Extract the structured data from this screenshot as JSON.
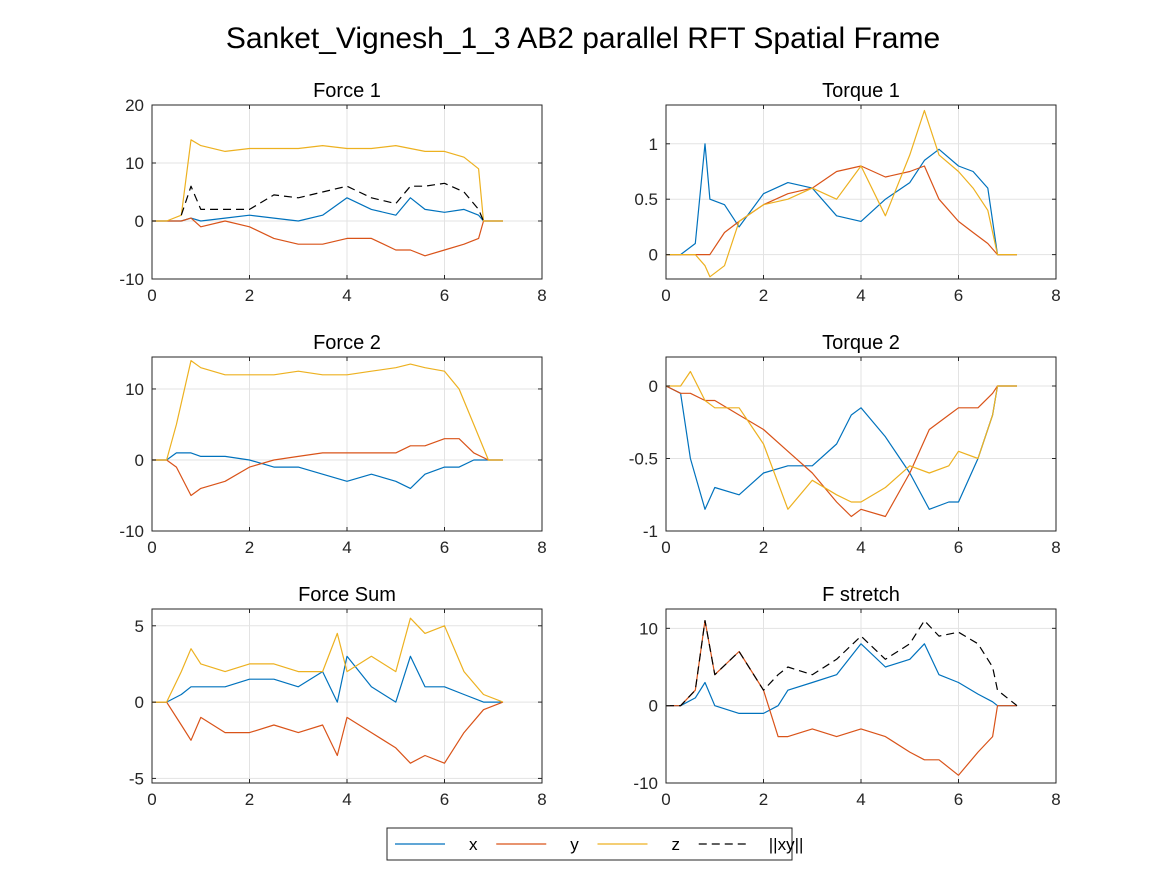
{
  "figure_title": "Sanket_Vignesh_1_3 AB2 parallel RFT Spatial Frame",
  "series_styles": [
    {
      "key": "x",
      "label": "x",
      "color": "#0072BD",
      "dash": ""
    },
    {
      "key": "y",
      "label": "y",
      "color": "#D95319",
      "dash": ""
    },
    {
      "key": "z",
      "label": "z",
      "color": "#EDB120",
      "dash": ""
    },
    {
      "key": "xy",
      "label": "||xy||",
      "color": "#000000",
      "dash": "8,5"
    }
  ],
  "legend": {
    "placement": "bottom-center"
  },
  "chart_data": [
    {
      "type": "line",
      "title": "Force 1",
      "xlim": [
        0,
        8
      ],
      "ylim": [
        -10,
        20
      ],
      "grid": true,
      "xticks": [
        0,
        2,
        4,
        6,
        8
      ],
      "yticks": [
        -10,
        0,
        10,
        20
      ],
      "ytick_labels": [
        "-10",
        "0",
        "10",
        "20"
      ],
      "x": [
        0,
        0.3,
        0.6,
        0.8,
        1.0,
        1.5,
        2.0,
        2.5,
        3.0,
        3.5,
        4.0,
        4.5,
        5.0,
        5.3,
        5.6,
        6.0,
        6.4,
        6.7,
        6.8,
        7.2
      ],
      "series": [
        {
          "key": "x",
          "values": [
            0,
            0,
            0,
            0.5,
            0,
            0.5,
            1,
            0.5,
            0,
            1,
            4,
            2,
            1,
            4,
            2,
            1.5,
            2,
            1,
            0,
            0
          ]
        },
        {
          "key": "y",
          "values": [
            0,
            0,
            0,
            0.5,
            -1,
            0,
            -1,
            -3,
            -4,
            -4,
            -3,
            -3,
            -5,
            -5,
            -6,
            -5,
            -4,
            -3,
            0,
            0
          ]
        },
        {
          "key": "z",
          "values": [
            0,
            0,
            1,
            14,
            13,
            12,
            12.5,
            12.5,
            12.5,
            13,
            12.5,
            12.5,
            13,
            12.5,
            12,
            12,
            11,
            9,
            0,
            0
          ]
        },
        {
          "key": "xy",
          "values": [
            null,
            null,
            1,
            6,
            2,
            2,
            2,
            4.5,
            4,
            5,
            6,
            4,
            3,
            6,
            6,
            6.5,
            5,
            2,
            0,
            null
          ]
        }
      ]
    },
    {
      "type": "line",
      "title": "Torque 1",
      "xlim": [
        0,
        8
      ],
      "ylim": [
        -0.22,
        1.35
      ],
      "grid": true,
      "xticks": [
        0,
        2,
        4,
        6,
        8
      ],
      "yticks": [
        0,
        0.5,
        1
      ],
      "ytick_labels": [
        "0",
        "0.5",
        "1"
      ],
      "x": [
        0,
        0.3,
        0.6,
        0.8,
        0.9,
        1.2,
        1.5,
        2.0,
        2.5,
        3.0,
        3.5,
        4.0,
        4.5,
        5.0,
        5.3,
        5.6,
        6.0,
        6.3,
        6.6,
        6.8,
        7.2
      ],
      "series": [
        {
          "key": "x",
          "values": [
            0,
            0,
            0.1,
            1.0,
            0.5,
            0.45,
            0.25,
            0.55,
            0.65,
            0.6,
            0.35,
            0.3,
            0.5,
            0.65,
            0.85,
            0.95,
            0.8,
            0.75,
            0.6,
            0,
            0
          ]
        },
        {
          "key": "y",
          "values": [
            0,
            0,
            0,
            0,
            0,
            0.2,
            0.3,
            0.45,
            0.55,
            0.6,
            0.75,
            0.8,
            0.7,
            0.75,
            0.8,
            0.5,
            0.3,
            0.2,
            0.1,
            0,
            0
          ]
        },
        {
          "key": "z",
          "values": [
            0,
            0,
            0,
            -0.1,
            -0.2,
            -0.1,
            0.3,
            0.45,
            0.5,
            0.6,
            0.5,
            0.8,
            0.35,
            0.9,
            1.3,
            0.9,
            0.75,
            0.6,
            0.4,
            0,
            0
          ]
        }
      ]
    },
    {
      "type": "line",
      "title": "Force 2",
      "xlim": [
        0,
        8
      ],
      "ylim": [
        -10,
        14.5
      ],
      "grid": true,
      "xticks": [
        0,
        2,
        4,
        6,
        8
      ],
      "yticks": [
        -10,
        0,
        10
      ],
      "ytick_labels": [
        "-10",
        "0",
        "10"
      ],
      "x": [
        0,
        0.3,
        0.5,
        0.8,
        1.0,
        1.5,
        2.0,
        2.5,
        3.0,
        3.5,
        4.0,
        4.5,
        5.0,
        5.3,
        5.6,
        6.0,
        6.3,
        6.6,
        6.9,
        7.2
      ],
      "series": [
        {
          "key": "x",
          "values": [
            0,
            0,
            1,
            1,
            0.5,
            0.5,
            0,
            -1,
            -1,
            -2,
            -3,
            -2,
            -3,
            -4,
            -2,
            -1,
            -1,
            0,
            0,
            0
          ]
        },
        {
          "key": "y",
          "values": [
            0,
            0,
            -1,
            -5,
            -4,
            -3,
            -1,
            0,
            0.5,
            1,
            1,
            1,
            1,
            2,
            2,
            3,
            3,
            1,
            0,
            0
          ]
        },
        {
          "key": "z",
          "values": [
            0,
            0,
            5,
            14,
            13,
            12,
            12,
            12,
            12.5,
            12,
            12,
            12.5,
            13,
            13.5,
            13,
            12.5,
            10,
            5,
            0,
            0
          ]
        }
      ]
    },
    {
      "type": "line",
      "title": "Torque 2",
      "xlim": [
        0,
        8
      ],
      "ylim": [
        -1,
        0.2
      ],
      "grid": true,
      "xticks": [
        0,
        2,
        4,
        6,
        8
      ],
      "yticks": [
        -1,
        -0.5,
        0
      ],
      "ytick_labels": [
        "-1",
        "-0.5",
        "0"
      ],
      "x": [
        0,
        0.3,
        0.5,
        0.8,
        1.0,
        1.5,
        2.0,
        2.5,
        3.0,
        3.5,
        3.8,
        4.0,
        4.5,
        5.0,
        5.4,
        5.8,
        6.0,
        6.4,
        6.7,
        6.8,
        7.2
      ],
      "series": [
        {
          "key": "x",
          "values": [
            0,
            -0.05,
            -0.5,
            -0.85,
            -0.7,
            -0.75,
            -0.6,
            -0.55,
            -0.55,
            -0.4,
            -0.2,
            -0.15,
            -0.35,
            -0.6,
            -0.85,
            -0.8,
            -0.8,
            -0.5,
            -0.2,
            0,
            0
          ]
        },
        {
          "key": "y",
          "values": [
            0,
            -0.05,
            -0.05,
            -0.1,
            -0.1,
            -0.2,
            -0.3,
            -0.45,
            -0.6,
            -0.8,
            -0.9,
            -0.85,
            -0.9,
            -0.6,
            -0.3,
            -0.2,
            -0.15,
            -0.15,
            -0.05,
            0,
            0
          ]
        },
        {
          "key": "z",
          "values": [
            0,
            0,
            0.1,
            -0.1,
            -0.15,
            -0.15,
            -0.4,
            -0.85,
            -0.65,
            -0.75,
            -0.8,
            -0.8,
            -0.7,
            -0.55,
            -0.6,
            -0.55,
            -0.45,
            -0.5,
            -0.2,
            0,
            0
          ]
        }
      ]
    },
    {
      "type": "line",
      "title": "Force Sum",
      "xlim": [
        0,
        8
      ],
      "ylim": [
        -5.3,
        6.1
      ],
      "grid": true,
      "xticks": [
        0,
        2,
        4,
        6,
        8
      ],
      "yticks": [
        -5,
        0,
        5
      ],
      "ytick_labels": [
        "-5",
        "0",
        "5"
      ],
      "x": [
        0,
        0.3,
        0.6,
        0.8,
        1.0,
        1.5,
        2.0,
        2.5,
        3.0,
        3.5,
        3.8,
        4.0,
        4.5,
        5.0,
        5.3,
        5.6,
        6.0,
        6.4,
        6.8,
        7.2
      ],
      "series": [
        {
          "key": "x",
          "values": [
            0,
            0,
            0.5,
            1,
            1,
            1,
            1.5,
            1.5,
            1,
            2,
            0,
            3,
            1,
            0,
            3,
            1,
            1,
            0.5,
            0,
            0
          ]
        },
        {
          "key": "y",
          "values": [
            0,
            0,
            -1.5,
            -2.5,
            -1,
            -2,
            -2,
            -1.5,
            -2,
            -1.5,
            -3.5,
            -1,
            -2,
            -3,
            -4,
            -3.5,
            -4,
            -2,
            -0.5,
            0
          ]
        },
        {
          "key": "z",
          "values": [
            0,
            0,
            2,
            3.5,
            2.5,
            2,
            2.5,
            2.5,
            2,
            2,
            4.5,
            2,
            3,
            2,
            5.5,
            4.5,
            5,
            2,
            0.5,
            0
          ]
        }
      ]
    },
    {
      "type": "line",
      "title": "F stretch",
      "xlim": [
        0,
        8
      ],
      "ylim": [
        -10,
        12.5
      ],
      "grid": true,
      "xticks": [
        0,
        2,
        4,
        6,
        8
      ],
      "yticks": [
        -10,
        0,
        10
      ],
      "ytick_labels": [
        "-10",
        "0",
        "10"
      ],
      "x": [
        0,
        0.3,
        0.6,
        0.8,
        1.0,
        1.5,
        2.0,
        2.3,
        2.5,
        3.0,
        3.5,
        4.0,
        4.5,
        5.0,
        5.3,
        5.6,
        6.0,
        6.4,
        6.7,
        6.8,
        7.2
      ],
      "series": [
        {
          "key": "x",
          "values": [
            0,
            0,
            1,
            3,
            0,
            -1,
            -1,
            0,
            2,
            3,
            4,
            8,
            5,
            6,
            8,
            4,
            3,
            1.5,
            0.5,
            0,
            0
          ]
        },
        {
          "key": "y",
          "values": [
            0,
            0,
            2,
            11,
            4,
            7,
            2,
            -4,
            -4,
            -3,
            -4,
            -3,
            -4,
            -6,
            -7,
            -7,
            -9,
            -6,
            -4,
            0,
            0
          ]
        },
        {
          "key": "xy",
          "values": [
            0,
            0,
            2,
            11,
            4,
            7,
            2,
            4,
            5,
            4,
            6,
            9,
            6,
            8,
            11,
            9,
            9.5,
            8,
            5,
            2,
            0
          ]
        }
      ]
    }
  ]
}
